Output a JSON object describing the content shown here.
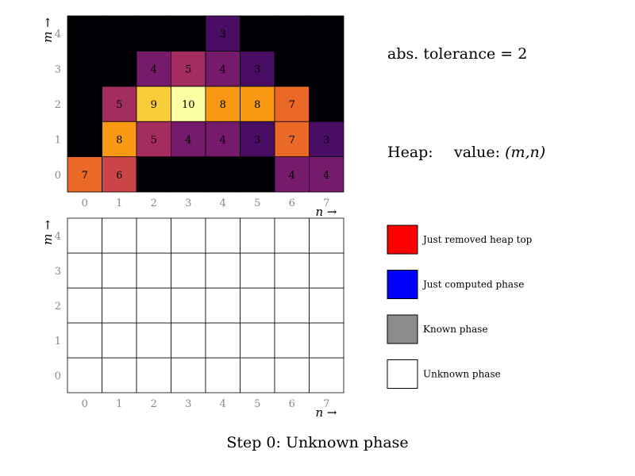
{
  "top_grid": {
    "rows_bottom_to_top": [
      [
        7,
        6,
        1,
        1,
        1,
        1,
        4,
        4
      ],
      [
        1,
        8,
        5,
        4,
        4,
        3,
        7,
        3
      ],
      [
        1,
        5,
        9,
        10,
        8,
        8,
        7,
        1
      ],
      [
        1,
        1,
        4,
        5,
        4,
        3,
        1,
        1
      ],
      [
        1,
        1,
        1,
        1,
        3,
        1,
        1,
        1
      ]
    ],
    "x_ticks": [
      "0",
      "1",
      "2",
      "3",
      "4",
      "5",
      "6",
      "7"
    ],
    "y_ticks": [
      "0",
      "1",
      "2",
      "3",
      "4"
    ],
    "x_label": "n →",
    "y_label": "m →",
    "colormap": "inferno"
  },
  "bottom_grid": {
    "phase_status_bottom_to_top": [
      [
        "unknown",
        "unknown",
        "unknown",
        "unknown",
        "unknown",
        "unknown",
        "unknown",
        "unknown"
      ],
      [
        "unknown",
        "unknown",
        "unknown",
        "unknown",
        "unknown",
        "unknown",
        "unknown",
        "unknown"
      ],
      [
        "unknown",
        "unknown",
        "unknown",
        "unknown",
        "unknown",
        "unknown",
        "unknown",
        "unknown"
      ],
      [
        "unknown",
        "unknown",
        "unknown",
        "unknown",
        "unknown",
        "unknown",
        "unknown",
        "unknown"
      ],
      [
        "unknown",
        "unknown",
        "unknown",
        "unknown",
        "unknown",
        "unknown",
        "unknown",
        "unknown"
      ]
    ],
    "x_ticks": [
      "0",
      "1",
      "2",
      "3",
      "4",
      "5",
      "6",
      "7"
    ],
    "y_ticks": [
      "0",
      "1",
      "2",
      "3",
      "4"
    ],
    "x_label": "n →",
    "y_label": "m →"
  },
  "tolerance_text": "abs.  tolerance = 2",
  "heap": {
    "label": "Heap:",
    "entry_label": "value: ",
    "entry_tuple": "(m,n)"
  },
  "legend": [
    {
      "label": "Just removed heap top",
      "color": "#ff0000",
      "status": "removed"
    },
    {
      "label": "Just computed phase",
      "color": "#0000ff",
      "status": "computed"
    },
    {
      "label": "Known phase",
      "color": "#8c8c8c",
      "status": "known"
    },
    {
      "label": "Unknown phase",
      "color": "#ffffff",
      "status": "unknown"
    }
  ],
  "step_title": "Step 0:  Unknown phase"
}
